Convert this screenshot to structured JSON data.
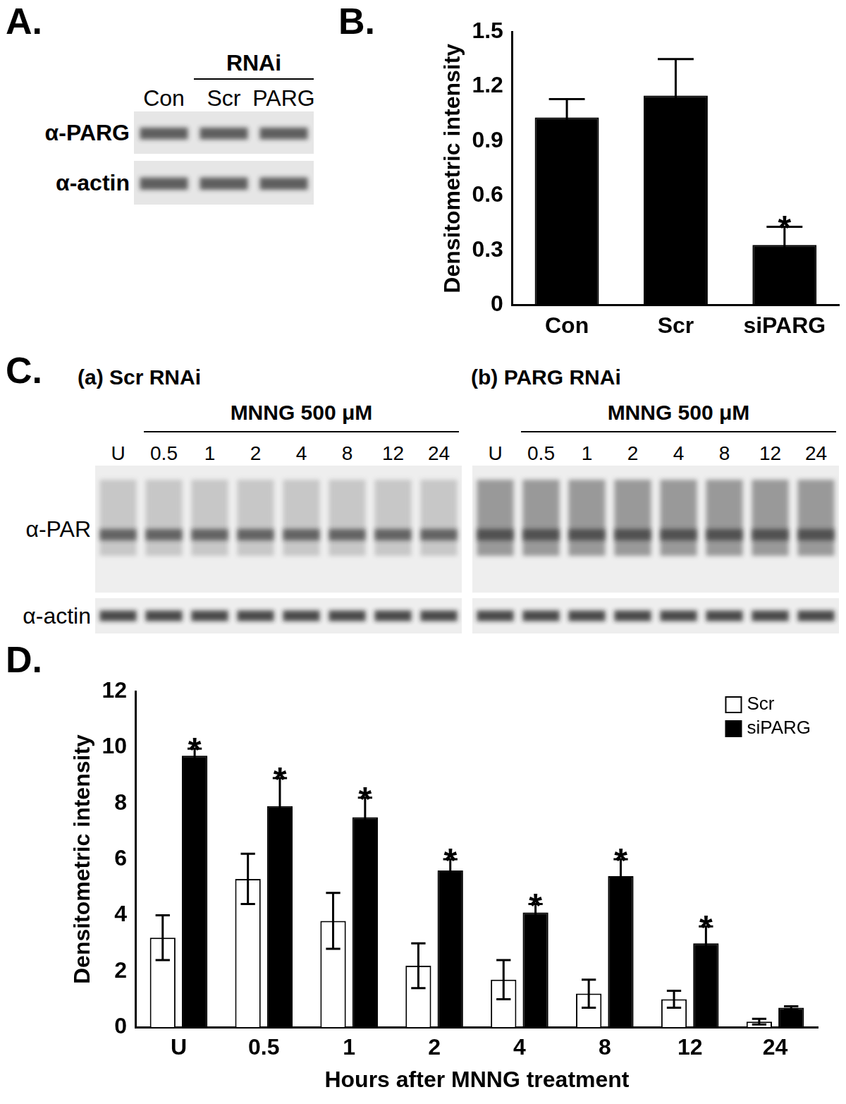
{
  "panel_labels": {
    "A": "A.",
    "B": "B.",
    "C": "C.",
    "D": "D."
  },
  "blots": {
    "A": {
      "header": "RNAi",
      "lanes": [
        "Con",
        "Scr",
        "PARG"
      ],
      "rows": [
        "α-PARG",
        "α-actin"
      ]
    },
    "C": [
      {
        "title": "(a) Scr RNAi",
        "treatment": "MNNG 500 μM",
        "lanes": [
          "U",
          "0.5",
          "1",
          "2",
          "4",
          "8",
          "12",
          "24"
        ],
        "rows": [
          "α-PAR",
          "α-actin"
        ]
      },
      {
        "title": "(b) PARG RNAi",
        "treatment": "MNNG 500 μM",
        "lanes": [
          "U",
          "0.5",
          "1",
          "2",
          "4",
          "8",
          "12",
          "24"
        ]
      }
    ]
  },
  "chart_data": [
    {
      "type": "bar",
      "y_label": "Densitometric intensity",
      "categories": [
        "Con",
        "Scr",
        "siPARG"
      ],
      "values": [
        1.03,
        1.15,
        0.33
      ],
      "errors": [
        0.1,
        0.2,
        0.1
      ],
      "significance": [
        null,
        null,
        "*"
      ],
      "color": "#000000",
      "ylim": [
        0,
        1.5
      ],
      "yticks": [
        0,
        0.3,
        0.6,
        0.9,
        1.2,
        1.5
      ],
      "grid": false
    },
    {
      "type": "bar",
      "x_label": "Hours after MNNG treatment",
      "y_label": "Densitometric intensity",
      "categories": [
        "U",
        "0.5",
        "1",
        "2",
        "4",
        "8",
        "12",
        "24"
      ],
      "series": [
        {
          "name": "Scr",
          "color": "#ffffff",
          "values": [
            3.2,
            5.3,
            3.8,
            2.2,
            1.7,
            1.2,
            1.0,
            0.2
          ],
          "errors": [
            0.8,
            0.9,
            1.0,
            0.8,
            0.7,
            0.5,
            0.3,
            0.1
          ]
        },
        {
          "name": "siPARG",
          "color": "#000000",
          "values": [
            9.7,
            7.9,
            7.5,
            5.6,
            4.1,
            5.4,
            3.0,
            0.7
          ],
          "errors": [
            0.25,
            1.0,
            0.7,
            0.4,
            0.3,
            0.6,
            0.6,
            0.05
          ],
          "significance": [
            "*",
            "*",
            "*",
            "*",
            "*",
            "*",
            "*",
            null
          ]
        }
      ],
      "ylim": [
        0,
        12
      ],
      "yticks": [
        0,
        2,
        4,
        6,
        8,
        10,
        12
      ],
      "grid": false,
      "legend": "upper right"
    }
  ]
}
